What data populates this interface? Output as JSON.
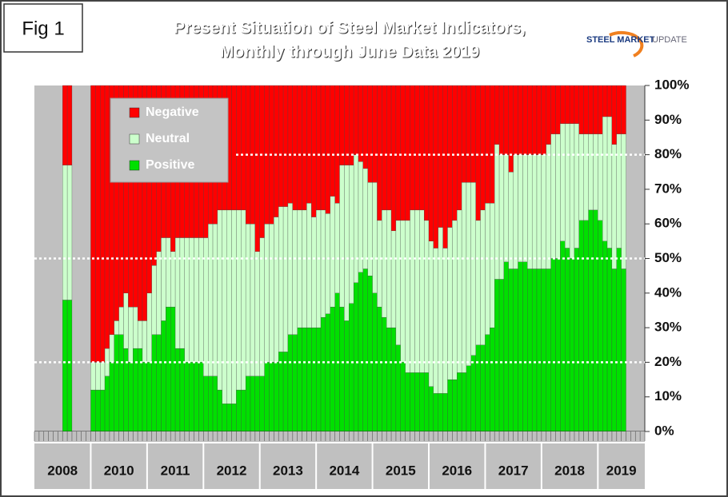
{
  "figure_label": "Fig 1",
  "logo": {
    "line1": "STEEL MARKET",
    "line2": "UPDATE"
  },
  "chart_data": {
    "type": "stacked_bar",
    "title": [
      "Present Situation of Steel Market Indicators,",
      "Monthly through June Data 2019"
    ],
    "categories": [
      "2008",
      null,
      null,
      null,
      null,
      null,
      null,
      null,
      null,
      null,
      null,
      null,
      "2010",
      null,
      null,
      null,
      null,
      null,
      null,
      null,
      null,
      null,
      null,
      null,
      "2011",
      null,
      null,
      null,
      null,
      null,
      null,
      null,
      null,
      null,
      null,
      null,
      "2012",
      null,
      null,
      null,
      null,
      null,
      null,
      null,
      null,
      null,
      null,
      null,
      "2013",
      null,
      null,
      null,
      null,
      null,
      null,
      null,
      null,
      null,
      null,
      null,
      "2014",
      null,
      null,
      null,
      null,
      null,
      null,
      null,
      null,
      null,
      null,
      null,
      "2015",
      null,
      null,
      null,
      null,
      null,
      null,
      null,
      null,
      null,
      null,
      null,
      "2016",
      null,
      null,
      null,
      null,
      null,
      null,
      null,
      null,
      null,
      null,
      null,
      "2017",
      null,
      null,
      null,
      null,
      null,
      null,
      null,
      null,
      null,
      null,
      null,
      "2018",
      null,
      null,
      null,
      null,
      null,
      null,
      null,
      null,
      null,
      null,
      null,
      "2019",
      null,
      null,
      null,
      null,
      null,
      null,
      null,
      null,
      null
    ],
    "series": [
      {
        "name": "Positive",
        "color": "#00e000",
        "values": [
          null,
          null,
          null,
          null,
          null,
          null,
          38,
          38,
          null,
          null,
          null,
          null,
          12,
          12,
          12,
          16,
          20,
          28,
          28,
          24,
          20,
          24,
          24,
          20,
          20,
          28,
          28,
          32,
          36,
          36,
          24,
          24,
          20,
          20,
          20,
          20,
          16,
          16,
          16,
          12,
          8,
          8,
          8,
          12,
          12,
          16,
          16,
          16,
          16,
          20,
          20,
          20,
          23,
          23,
          28,
          28,
          30,
          30,
          30,
          30,
          30,
          33,
          34,
          36,
          40,
          36,
          32,
          37,
          43,
          46,
          47,
          45,
          40,
          36,
          33,
          30,
          30,
          25,
          20,
          17,
          17,
          17,
          17,
          17,
          13,
          11,
          11,
          11,
          15,
          15,
          17,
          17,
          19,
          22,
          25,
          25,
          28,
          30,
          44,
          44,
          49,
          47,
          47,
          49,
          49,
          47,
          47,
          47,
          47,
          47,
          50,
          50,
          55,
          53,
          50,
          53,
          61,
          61,
          64,
          64,
          61,
          55,
          53,
          47,
          53,
          47,
          null,
          null,
          null,
          null
        ]
      },
      {
        "name": "Neutral",
        "color": "#ccffcc",
        "values": [
          null,
          null,
          null,
          null,
          null,
          null,
          39,
          39,
          null,
          null,
          null,
          null,
          8,
          8,
          8,
          8,
          8,
          4,
          8,
          16,
          16,
          12,
          8,
          12,
          20,
          20,
          24,
          24,
          20,
          16,
          32,
          32,
          36,
          36,
          36,
          36,
          40,
          44,
          44,
          52,
          56,
          56,
          56,
          52,
          52,
          44,
          44,
          36,
          40,
          40,
          40,
          42,
          42,
          42,
          38,
          36,
          34,
          34,
          36,
          32,
          34,
          31,
          29,
          32,
          26,
          41,
          45,
          40,
          37,
          32,
          29,
          27,
          32,
          25,
          31,
          34,
          28,
          36,
          41,
          44,
          47,
          47,
          47,
          44,
          42,
          42,
          48,
          42,
          44,
          46,
          47,
          55,
          53,
          50,
          36,
          39,
          38,
          36,
          39,
          36,
          31,
          28,
          33,
          31,
          31,
          33,
          33,
          33,
          33,
          36,
          36,
          36,
          34,
          36,
          39,
          36,
          25,
          25,
          22,
          22,
          25,
          36,
          38,
          36,
          33,
          39,
          null,
          null,
          null,
          null
        ]
      },
      {
        "name": "Negative",
        "color": "#ff0000",
        "values": [
          null,
          null,
          null,
          null,
          null,
          null,
          23,
          23,
          null,
          null,
          null,
          null,
          80,
          80,
          80,
          76,
          72,
          68,
          64,
          60,
          64,
          64,
          68,
          68,
          60,
          52,
          48,
          44,
          44,
          48,
          44,
          44,
          44,
          44,
          44,
          44,
          44,
          40,
          40,
          36,
          36,
          36,
          36,
          36,
          36,
          40,
          40,
          48,
          44,
          40,
          40,
          38,
          35,
          35,
          34,
          36,
          36,
          36,
          34,
          38,
          36,
          36,
          37,
          32,
          34,
          23,
          23,
          23,
          20,
          22,
          24,
          28,
          28,
          39,
          36,
          36,
          42,
          39,
          39,
          39,
          36,
          36,
          36,
          39,
          45,
          47,
          41,
          47,
          41,
          39,
          36,
          28,
          28,
          28,
          39,
          36,
          34,
          34,
          17,
          20,
          20,
          25,
          20,
          20,
          20,
          20,
          20,
          20,
          20,
          17,
          14,
          14,
          11,
          11,
          11,
          11,
          14,
          14,
          14,
          14,
          14,
          9,
          9,
          17,
          14,
          14,
          null,
          null,
          null,
          null
        ]
      }
    ],
    "ylim": [
      0,
      100
    ],
    "yticks": [
      {
        "value": 0,
        "label": "0%"
      },
      {
        "value": 10,
        "label": "10%"
      },
      {
        "value": 20,
        "label": "20%"
      },
      {
        "value": 30,
        "label": "30%"
      },
      {
        "value": 40,
        "label": "40%"
      },
      {
        "value": 50,
        "label": "50%"
      },
      {
        "value": 60,
        "label": "60%"
      },
      {
        "value": 70,
        "label": "70%"
      },
      {
        "value": 80,
        "label": "80%"
      },
      {
        "value": 90,
        "label": "90%"
      },
      {
        "value": 100,
        "label": "100%"
      }
    ],
    "reference_lines": [
      20,
      50,
      80
    ],
    "legend": "upper left"
  }
}
